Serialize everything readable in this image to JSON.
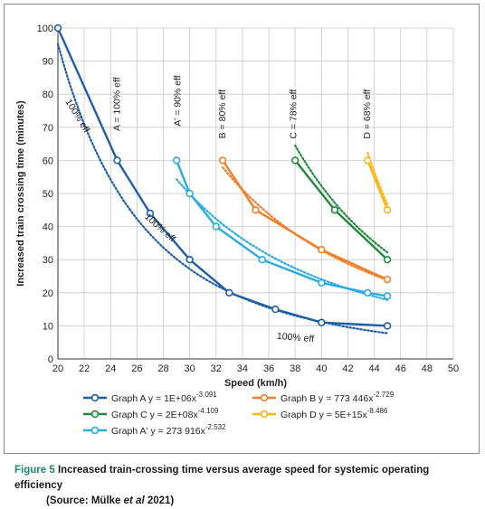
{
  "chart_data": {
    "type": "line",
    "xlabel": "Speed (km/h)",
    "ylabel": "Increased train crossing time (minutes)",
    "xlim": [
      20,
      50
    ],
    "ylim": [
      0,
      100
    ],
    "xticks": [
      20,
      22,
      24,
      26,
      28,
      30,
      32,
      34,
      36,
      38,
      40,
      42,
      44,
      46,
      48,
      50
    ],
    "yticks": [
      0,
      10,
      20,
      30,
      40,
      50,
      60,
      70,
      80,
      90,
      100
    ],
    "grid": true,
    "legend_position": "bottom",
    "series": [
      {
        "key": "A",
        "legend_label": "Graph A",
        "equation": "y = 1E+06x",
        "exponent": "-3.091",
        "color": "#1f5fa8",
        "x": [
          20,
          24.5,
          27,
          30,
          33,
          36.5,
          40,
          45
        ],
        "y": [
          100,
          60,
          44,
          30,
          20,
          15,
          11,
          10
        ],
        "trend": {
          "coef": 1000000,
          "exp": -3.091,
          "x_range": [
            20,
            45
          ]
        }
      },
      {
        "key": "A_prime",
        "legend_label": "Graph A'",
        "equation": "y = 273 916x",
        "exponent": "-2.532",
        "color": "#29abe2",
        "x": [
          29,
          30,
          32,
          35.5,
          40,
          43.5,
          45
        ],
        "y": [
          60,
          50,
          40,
          30,
          23,
          20,
          19
        ],
        "trend": {
          "coef": 273916,
          "exp": -2.532,
          "x_range": [
            29,
            45
          ]
        }
      },
      {
        "key": "B",
        "legend_label": "Graph B",
        "equation": "y = 773 446x",
        "exponent": "-2.729",
        "color": "#f07f2a",
        "x": [
          32.5,
          35,
          40,
          45
        ],
        "y": [
          60,
          45,
          33,
          24
        ],
        "trend": {
          "coef": 773446,
          "exp": -2.729,
          "x_range": [
            32.5,
            45
          ]
        }
      },
      {
        "key": "C",
        "legend_label": "Graph C",
        "equation": "y = 2E+08x",
        "exponent": "-4.109",
        "color": "#1e8a3a",
        "x": [
          38,
          41,
          45
        ],
        "y": [
          60,
          45,
          30
        ],
        "trend": {
          "coef": 200000000,
          "exp": -4.109,
          "x_range": [
            38,
            45
          ]
        }
      },
      {
        "key": "D",
        "legend_label": "Graph D",
        "equation": "y = 5E+15x",
        "exponent": "-8.486",
        "color": "#fbb71a",
        "x": [
          43.5,
          45
        ],
        "y": [
          60,
          45
        ],
        "trend": {
          "coef": 5000000000000000,
          "exp": -8.486,
          "x_range": [
            43.5,
            45
          ]
        }
      }
    ],
    "annotations": [
      {
        "text": "100% eff",
        "x": 21.3,
        "y": 73,
        "angle": 58
      },
      {
        "text": "A = 100% eff",
        "x": 24.7,
        "y": 77,
        "angle": -90
      },
      {
        "text": "100% eff",
        "x": 27.6,
        "y": 39,
        "angle": 42
      },
      {
        "text": "100% eff",
        "x": 38,
        "y": 5.6,
        "angle": 5
      },
      {
        "text": "A' = 90% eff",
        "x": 29.3,
        "y": 78,
        "angle": -90
      },
      {
        "text": "B = 80% eff",
        "x": 32.7,
        "y": 74,
        "angle": -90
      },
      {
        "text": "C = 78% eff",
        "x": 38.1,
        "y": 74,
        "angle": -90
      },
      {
        "text": "D = 68% eff",
        "x": 43.7,
        "y": 74,
        "angle": -90
      }
    ]
  },
  "caption": {
    "label": "Figure 5",
    "text": "Increased train-crossing time versus average speed for systemic operating efficiency",
    "source_prefix": "(Source: Mülke ",
    "source_etal": "et al",
    "source_suffix": " 2021)"
  }
}
